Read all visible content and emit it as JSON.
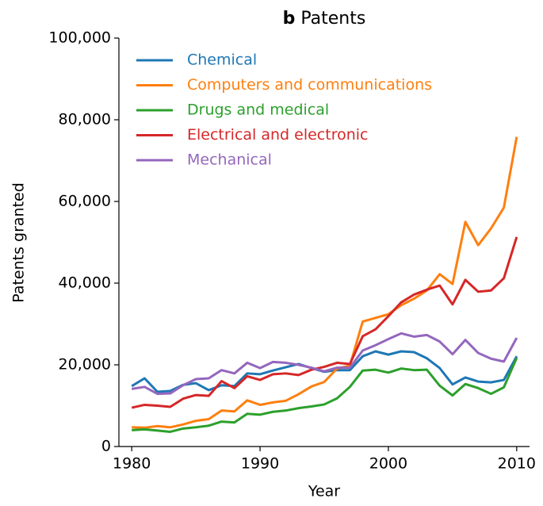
{
  "chart_data": {
    "type": "line",
    "panel_label": "b",
    "title": "Patents",
    "xlabel": "Year",
    "ylabel": "Patents granted",
    "x": [
      1980,
      1981,
      1982,
      1983,
      1984,
      1985,
      1986,
      1987,
      1988,
      1989,
      1990,
      1991,
      1992,
      1993,
      1994,
      1995,
      1996,
      1997,
      1998,
      1999,
      2000,
      2001,
      2002,
      2003,
      2004,
      2005,
      2006,
      2007,
      2008,
      2009,
      2010
    ],
    "xlim": [
      1979,
      2011
    ],
    "xticks": [
      1980,
      1990,
      2000,
      2010
    ],
    "ylim": [
      0,
      100000
    ],
    "yticks": [
      0,
      {
        "value": 20000,
        "label": "20,000"
      },
      {
        "value": 40000,
        "label": "40,000"
      },
      {
        "value": 60000,
        "label": "60,000"
      },
      {
        "value": 80000,
        "label": "80,000"
      },
      {
        "value": 100000,
        "label": "100,000"
      }
    ],
    "legend": "upper left",
    "series": [
      {
        "name": "Chemical",
        "color": "#1f77b4",
        "values": [
          14800,
          16700,
          13400,
          13600,
          15100,
          15500,
          13800,
          15000,
          14800,
          17900,
          17700,
          18600,
          19400,
          20200,
          19200,
          18300,
          18700,
          18700,
          22100,
          23300,
          22500,
          23300,
          23100,
          21600,
          19200,
          15200,
          16900,
          15900,
          15700,
          16300,
          22100
        ]
      },
      {
        "name": "Computers and communications",
        "color": "#ff7f0e",
        "values": [
          4700,
          4600,
          5000,
          4700,
          5400,
          6300,
          6700,
          8800,
          8600,
          11300,
          10200,
          10800,
          11200,
          12800,
          14700,
          15800,
          19100,
          19800,
          30600,
          31500,
          32400,
          34600,
          36200,
          38200,
          42200,
          39800,
          55000,
          49300,
          53400,
          58500,
          75800
        ]
      },
      {
        "name": "Drugs and medical",
        "color": "#2ca02c",
        "values": [
          4000,
          4200,
          3900,
          3600,
          4400,
          4700,
          5100,
          6100,
          5900,
          8000,
          7800,
          8500,
          8800,
          9400,
          9800,
          10300,
          11800,
          14600,
          18600,
          18800,
          18100,
          19100,
          18700,
          18800,
          14900,
          12500,
          15300,
          14300,
          12900,
          14500,
          21700
        ]
      },
      {
        "name": "Electrical and electronic",
        "color": "#d62728",
        "values": [
          9500,
          10200,
          10000,
          9700,
          11700,
          12600,
          12400,
          16000,
          14300,
          17200,
          16300,
          17700,
          17900,
          17500,
          18800,
          19500,
          20500,
          20200,
          27000,
          28700,
          31900,
          35300,
          37200,
          38400,
          39400,
          34800,
          40800,
          37900,
          38200,
          41200,
          51300
        ]
      },
      {
        "name": "Mechanical",
        "color": "#9467bd",
        "values": [
          14100,
          14600,
          12900,
          13000,
          15000,
          16500,
          16700,
          18700,
          17900,
          20500,
          19200,
          20700,
          20500,
          20000,
          19300,
          18400,
          19300,
          19300,
          23500,
          24800,
          26300,
          27700,
          26900,
          27300,
          25700,
          22600,
          26100,
          22900,
          21500,
          20800,
          26600
        ]
      }
    ]
  }
}
